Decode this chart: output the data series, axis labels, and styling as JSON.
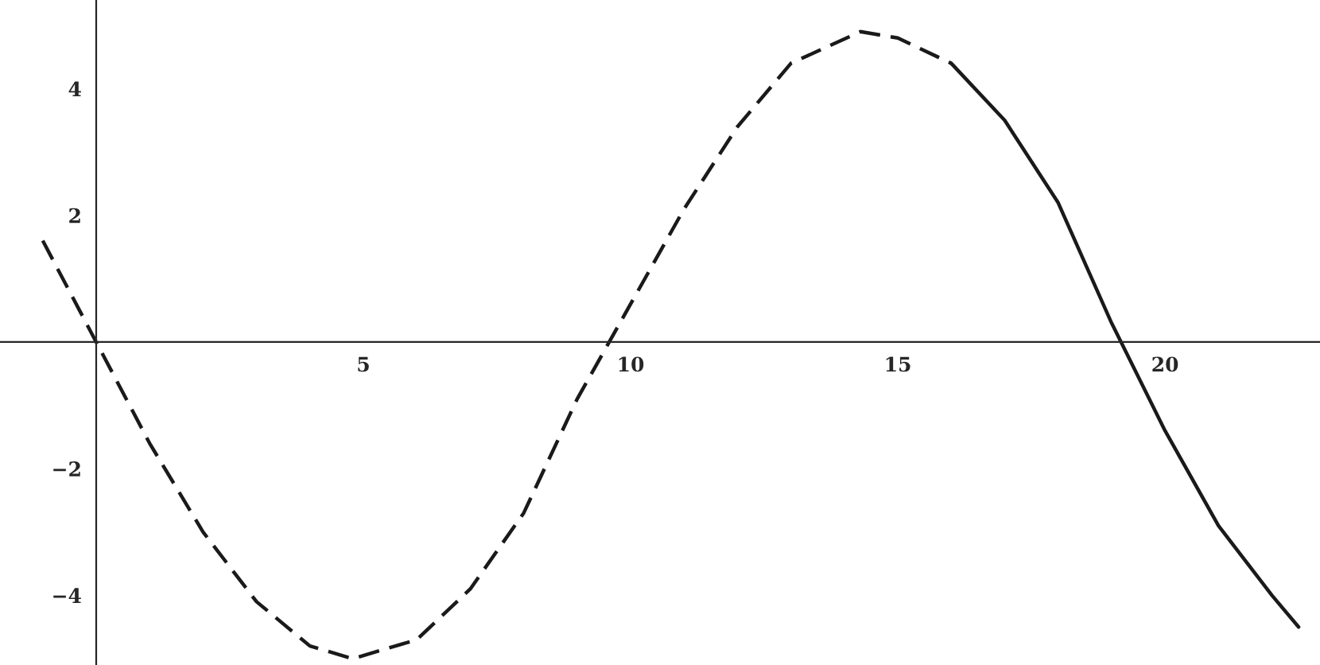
{
  "chart_data": {
    "type": "line",
    "series": [
      {
        "color": "#1a1a1a",
        "line_style": "dashed",
        "x": [
          -1,
          0,
          1,
          2,
          3,
          4,
          4.8,
          6,
          7,
          8,
          9,
          9.6,
          10,
          11,
          12,
          13,
          14.3,
          15,
          16
        ],
        "values": [
          1.6,
          0,
          -1.6,
          -3.0,
          -4.1,
          -4.8,
          -5.0,
          -4.7,
          -3.9,
          -2.7,
          -0.9,
          0,
          0.6,
          2.1,
          3.4,
          4.4,
          4.9,
          4.8,
          4.4
        ]
      },
      {
        "color": "#1a1a1a",
        "line_style": "solid",
        "x": [
          16,
          17,
          18,
          19,
          20,
          21,
          22,
          22.5
        ],
        "values": [
          4.4,
          3.5,
          2.2,
          0.3,
          -1.4,
          -2.9,
          -4.0,
          -4.5
        ]
      }
    ],
    "xlim": [
      -1.8,
      22.9
    ],
    "ylim": [
      -5.1,
      5.4
    ],
    "xticks": [
      5,
      10,
      15,
      20
    ],
    "yticks": [
      {
        "value": -4,
        "label": "−4"
      },
      {
        "value": -2,
        "label": "−2"
      },
      2,
      4
    ],
    "grid": false,
    "marker": "none"
  }
}
